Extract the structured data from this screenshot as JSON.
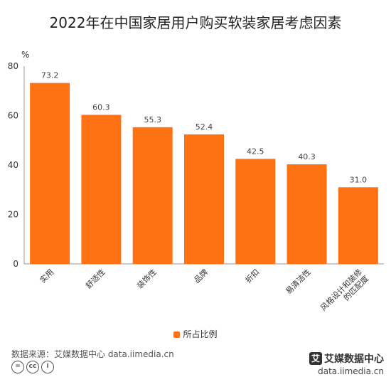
{
  "colors": {
    "bar": "#ff7214",
    "grid": "#e6e6e6",
    "axis": "#999999"
  },
  "chart_data": {
    "type": "bar",
    "title": "2022年在中国家居用户购买软装家居考虑因素",
    "ylabel": "%",
    "xlabel": "",
    "ylim": [
      0,
      80
    ],
    "yticks": [
      0,
      20,
      40,
      60,
      80
    ],
    "categories": [
      "实用",
      "舒适性",
      "装饰性",
      "品牌",
      "折扣",
      "易清洁性",
      "风格设计和装修的匹配度"
    ],
    "series": [
      {
        "name": "所占比例",
        "values": [
          73.2,
          60.3,
          55.3,
          52.4,
          42.5,
          40.3,
          31.0
        ]
      }
    ],
    "data_labels": [
      "73.2",
      "60.3",
      "55.3",
      "52.4",
      "42.5",
      "40.3",
      "31.0"
    ],
    "legend_position": "bottom-center",
    "grid": false
  },
  "footer": {
    "source": "数据来源：艾媒数据中心 data.iimedia.cn",
    "license_icons": [
      "=",
      "cc",
      "i"
    ],
    "brand_name": "艾媒数据中心",
    "brand_logo": "艾",
    "brand_url": "data.iimedia.cn"
  }
}
